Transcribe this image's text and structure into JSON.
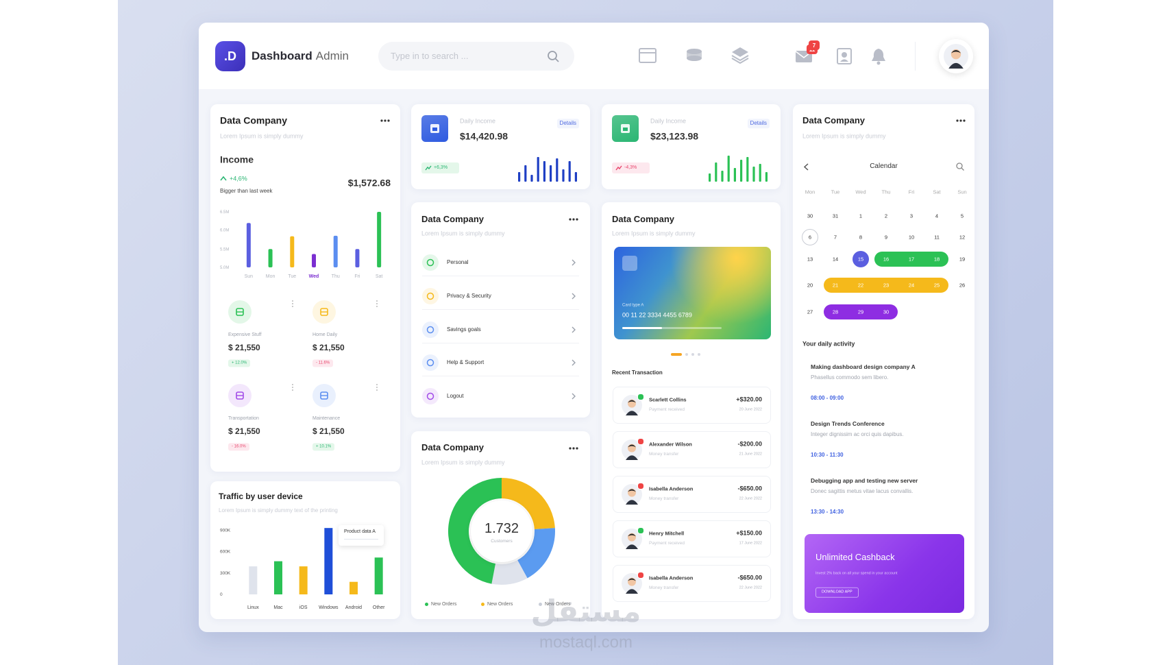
{
  "watermark": {
    "arabic": "مستقل",
    "latin": "mostaql.com"
  },
  "header": {
    "logo": ".D",
    "brand": "Dashboard",
    "brand_suffix": "Admin",
    "search_placeholder": "Type in to search ...",
    "badges": [
      "11",
      "7"
    ]
  },
  "income_card": {
    "title": "Data Company",
    "subtitle": "Lorem Ipsum is simply dummy",
    "heading": "Income",
    "change": "+4,6%",
    "note": "Bigger than last week",
    "amount": "$1,572.68",
    "chart": {
      "categories": [
        "Sun",
        "Mon",
        "Tue",
        "Wed",
        "Thu",
        "Fri",
        "Sat"
      ],
      "values": [
        80,
        33,
        56,
        24,
        57,
        33,
        100
      ],
      "colors": [
        "#5b5fe0",
        "#2bc155",
        "#f5b91b",
        "#7b2fd1",
        "#5b8ef0",
        "#5b5fe0",
        "#2bc155"
      ],
      "ylim": [
        0,
        100
      ],
      "yticks": [
        {
          "value": 0,
          "label": "5.0M"
        },
        {
          "value": 33,
          "label": "5.5M"
        },
        {
          "value": 67,
          "label": "6.0M"
        },
        {
          "value": 100,
          "label": "6.5M"
        }
      ],
      "highlight_category": 3,
      "highlight_color": "#7b2fd1"
    },
    "stats": [
      {
        "label": "Expensive Stuff",
        "amount": "$ 21,550",
        "change": "+ 12.0%",
        "trend": "up",
        "color": "#2bc155"
      },
      {
        "label": "Home Daily",
        "amount": "$ 21,550",
        "change": "- 11.6%",
        "trend": "down",
        "color": "#f5b91b"
      },
      {
        "label": "Transportation",
        "amount": "$ 21,550",
        "change": "- 16.0%",
        "trend": "down",
        "color": "#a24be8"
      },
      {
        "label": "Maintenance",
        "amount": "$ 21,550",
        "change": "+ 10.1%",
        "trend": "up",
        "color": "#5b8ef0"
      }
    ]
  },
  "traffic_card": {
    "title": "Traffic by user device",
    "subtitle": "Lorem Ipsum is simply dummy text of the printing",
    "chart": {
      "categories": [
        "Linux",
        "Mac",
        "iOS",
        "Windows",
        "Android",
        "Other"
      ],
      "values": [
        393000,
        465000,
        393000,
        931000,
        176000,
        517000
      ],
      "colors": [
        "#dfe3ec",
        "#2bc155",
        "#f5b91b",
        "#1f4fd8",
        "#f5b91b",
        "#2bc155"
      ],
      "ylim": [
        0,
        1000000
      ],
      "yticks": [
        0,
        {
          "value": 300000,
          "label": "300K"
        },
        {
          "value": 600000,
          "label": "600K"
        },
        {
          "value": 900000,
          "label": "900K"
        }
      ],
      "tooltip": "Product data A"
    }
  },
  "daily_income": [
    {
      "label": "Daily Income",
      "amount": "$14,420.98",
      "action": "Details",
      "change": "+6,3%",
      "trend": "up",
      "color": "#2f5be0",
      "bars": {
        "values": [
          14,
          24,
          10,
          36,
          30,
          24,
          34,
          18,
          30,
          14
        ],
        "ylim": [
          0,
          40
        ],
        "color": "#1f3fc4"
      }
    },
    {
      "label": "Daily Income",
      "amount": "$23,123.98",
      "action": "Details",
      "change": "-4,3%",
      "trend": "down",
      "color": "#2bb673",
      "bars": {
        "values": [
          12,
          28,
          16,
          38,
          20,
          32,
          36,
          22,
          26,
          14
        ],
        "ylim": [
          0,
          40
        ],
        "color": "#2bc155"
      }
    }
  ],
  "menu_card": {
    "title": "Data Company",
    "subtitle": "Lorem Ipsum is simply dummy",
    "items": [
      {
        "label": "Personal",
        "color": "#2bc155"
      },
      {
        "label": "Privacy & Security",
        "color": "#f5b91b"
      },
      {
        "label": "Savings goals",
        "color": "#5b8ef0"
      },
      {
        "label": "Help & Support",
        "color": "#5b8ef0"
      },
      {
        "label": "Logout",
        "color": "#a24be8"
      }
    ]
  },
  "donut_card": {
    "title": "Data Company",
    "subtitle": "Lorem Ipsum is simply dummy",
    "values": [
      24,
      18,
      11,
      47
    ],
    "colors": [
      "#f5b91b",
      "#5b9bf0",
      "#dfe3ec",
      "#2bc155"
    ],
    "center_value": "1.732",
    "center_label": "Customers",
    "legend": [
      {
        "name": "New Orders",
        "color": "#2bc155"
      },
      {
        "name": "New Orders",
        "color": "#f5b91b"
      },
      {
        "name": "New Orders",
        "color": "#c9ced8"
      }
    ]
  },
  "wallet_card": {
    "title": "Data Company",
    "subtitle": "Lorem Ipsum is simply dummy",
    "card": {
      "type": "Card type A",
      "number": "00 11 22 3334 4455 6789"
    },
    "section": "Recent Transaction",
    "transactions": [
      {
        "name": "Scarlett Collins",
        "note": "Payment received",
        "amount": "+$320.00",
        "date": "20 June 2022",
        "trend": "up"
      },
      {
        "name": "Alexander Wilson",
        "note": "Money transfer",
        "amount": "-$200.00",
        "date": "21 June 2022",
        "trend": "down"
      },
      {
        "name": "Isabella Anderson",
        "note": "Money transfer",
        "amount": "-$650.00",
        "date": "22 June 2022",
        "trend": "down"
      },
      {
        "name": "Henry Mitchell",
        "note": "Payment received",
        "amount": "+$150.00",
        "date": "17 June 2022",
        "trend": "up"
      },
      {
        "name": "Isabella Anderson",
        "note": "Money transfer",
        "amount": "-$650.00",
        "date": "22 June 2022",
        "trend": "down"
      }
    ]
  },
  "calendar_card": {
    "title": "Data Company",
    "subtitle": "Lorem Ipsum is simply dummy",
    "heading": "Calendar",
    "weekdays": [
      "Mon",
      "Tue",
      "Wed",
      "Thu",
      "Fri",
      "Sat",
      "Sun"
    ],
    "weeks": [
      [
        "30",
        "31",
        "1",
        "2",
        "3",
        "4",
        "5"
      ],
      [
        "6",
        "7",
        "8",
        "9",
        "10",
        "11",
        "12"
      ],
      [
        "13",
        "14",
        "15",
        "16",
        "17",
        "18",
        "19"
      ],
      [
        "20",
        "21",
        "22",
        "23",
        "24",
        "25",
        "26"
      ],
      [
        "27",
        "28",
        "29",
        "30"
      ]
    ],
    "today": {
      "week": 1,
      "day": 0
    },
    "selected": {
      "week": 2,
      "day": 2,
      "color": "#5b5fe0"
    },
    "ranges": [
      {
        "week": 2,
        "from": 3,
        "to": 5,
        "color": "#2bc155"
      },
      {
        "week": 3,
        "from": 1,
        "to": 5,
        "color": "#f5b91b"
      },
      {
        "week": 4,
        "from": 1,
        "to": 3,
        "color": "#8e2de2"
      }
    ],
    "activity_heading": "Your daily activity",
    "activities": [
      {
        "title": "Making dashboard design company A",
        "text": "Phasellus commodo sem libero.",
        "time": "08:00 - 09:00"
      },
      {
        "title": "Design Trends Conference",
        "text": "Integer dignissim ac orci quis dapibus.",
        "time": "10:30 - 11:30"
      },
      {
        "title": "Debugging app and testing new server",
        "text": "Donec sagittis metus vitae lacus convallis.",
        "time": "13:30 - 14:30"
      }
    ],
    "promo": {
      "title": "Unlimited Cashback",
      "text": "Invest 2% back on all your spend in your account",
      "button": "DOWNLOAD APP"
    }
  }
}
